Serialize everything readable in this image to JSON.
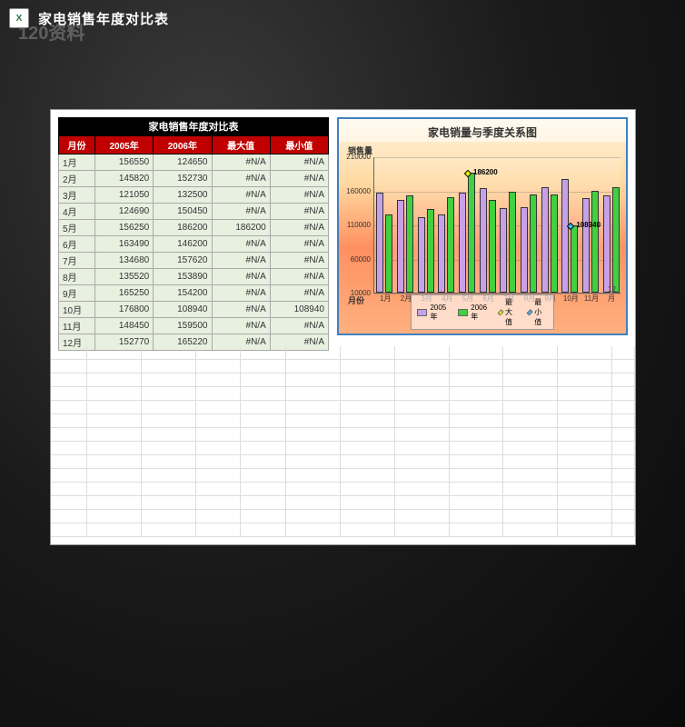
{
  "app": {
    "title": "家电销售年度对比表",
    "watermark": "120资料"
  },
  "table": {
    "title": "家电销售年度对比表",
    "headers": [
      "月份",
      "2005年",
      "2006年",
      "最大值",
      "最小值"
    ],
    "rows": [
      {
        "month": "1月",
        "y2005": 156550,
        "y2006": 124650,
        "max": "#N/A",
        "min": "#N/A"
      },
      {
        "month": "2月",
        "y2005": 145820,
        "y2006": 152730,
        "max": "#N/A",
        "min": "#N/A"
      },
      {
        "month": "3月",
        "y2005": 121050,
        "y2006": 132500,
        "max": "#N/A",
        "min": "#N/A"
      },
      {
        "month": "4月",
        "y2005": 124690,
        "y2006": 150450,
        "max": "#N/A",
        "min": "#N/A"
      },
      {
        "month": "5月",
        "y2005": 156250,
        "y2006": 186200,
        "max": "186200",
        "min": "#N/A"
      },
      {
        "month": "6月",
        "y2005": 163490,
        "y2006": 146200,
        "max": "#N/A",
        "min": "#N/A"
      },
      {
        "month": "7月",
        "y2005": 134680,
        "y2006": 157620,
        "max": "#N/A",
        "min": "#N/A"
      },
      {
        "month": "8月",
        "y2005": 135520,
        "y2006": 153890,
        "max": "#N/A",
        "min": "#N/A"
      },
      {
        "month": "9月",
        "y2005": 165250,
        "y2006": 154200,
        "max": "#N/A",
        "min": "#N/A"
      },
      {
        "month": "10月",
        "y2005": 176800,
        "y2006": 108940,
        "max": "#N/A",
        "min": "108940"
      },
      {
        "month": "11月",
        "y2005": 148450,
        "y2006": 159500,
        "max": "#N/A",
        "min": "#N/A"
      },
      {
        "month": "12月",
        "y2005": 152770,
        "y2006": 165220,
        "max": "#N/A",
        "min": "#N/A"
      }
    ]
  },
  "chart": {
    "type": "bar",
    "title": "家电销量与季度关系图",
    "ylabel": "销售量",
    "xlabel": "月份",
    "ylim": [
      10000,
      210000
    ],
    "yticks": [
      10000,
      60000,
      110000,
      160000,
      210000
    ],
    "categories": [
      "1月",
      "2月",
      "3月",
      "4月",
      "5月",
      "6月",
      "7月",
      "8月",
      "9月",
      "10月",
      "11月",
      "12月"
    ],
    "series": [
      {
        "name": "2005年",
        "color": "#c8a0e8",
        "values": [
          156550,
          145820,
          121050,
          124690,
          156250,
          163490,
          134680,
          135520,
          165250,
          176800,
          148450,
          152770
        ]
      },
      {
        "name": "2006年",
        "color": "#40d040",
        "values": [
          124650,
          152730,
          132500,
          150450,
          186200,
          146200,
          157620,
          153890,
          154200,
          108940,
          159500,
          165220
        ]
      }
    ],
    "max_marker": {
      "name": "最大值",
      "color": "#ffff00",
      "month_index": 4,
      "value": 186200,
      "label": "186200"
    },
    "min_marker": {
      "name": "最小值",
      "color": "#40c0ff",
      "month_index": 9,
      "value": 108940,
      "label": "108940"
    },
    "legend": [
      "2005年",
      "2006年",
      "最大值",
      "最小值"
    ],
    "background_gradient": [
      "#fff5e0",
      "#ffd9a0",
      "#ff9060",
      "#ffb080"
    ],
    "border_color": "#4080c0"
  }
}
